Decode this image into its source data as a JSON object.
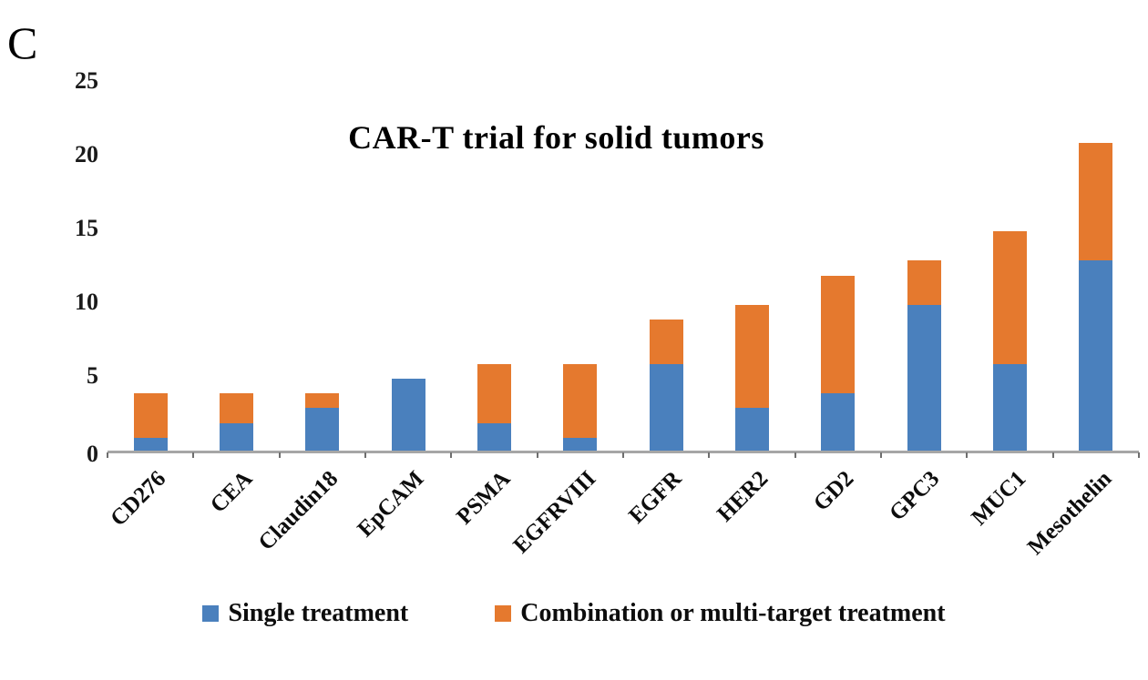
{
  "panel_label": "C",
  "axis_color": "#a6a6a6",
  "chart_data": {
    "type": "bar",
    "stacked": true,
    "title": "CAR-T trial for solid tumors",
    "xlabel": "",
    "ylabel": "",
    "ylim": [
      0,
      25
    ],
    "yticks": [
      0,
      5,
      10,
      15,
      20,
      25
    ],
    "grid": false,
    "legend_position": "bottom",
    "categories": [
      "CD276",
      "CEA",
      "Claudin18",
      "EpCAM",
      "PSMA",
      "EGFRVIII",
      "EGFR",
      "HER2",
      "GD2",
      "GPC3",
      "MUC1",
      "Mesothelin"
    ],
    "series": [
      {
        "name": "Single treatment",
        "color": "#4a80bd",
        "values": [
          1,
          2,
          3,
          5,
          2,
          1,
          6,
          3,
          4,
          10,
          6,
          13
        ]
      },
      {
        "name": "Combination or multi-target treatment",
        "color": "#e5792e",
        "values": [
          3,
          2,
          1,
          0,
          4,
          5,
          3,
          7,
          8,
          3,
          9,
          8
        ]
      }
    ],
    "totals": [
      4,
      4,
      4,
      5,
      6,
      6,
      9,
      10,
      12,
      13,
      15,
      21
    ]
  }
}
